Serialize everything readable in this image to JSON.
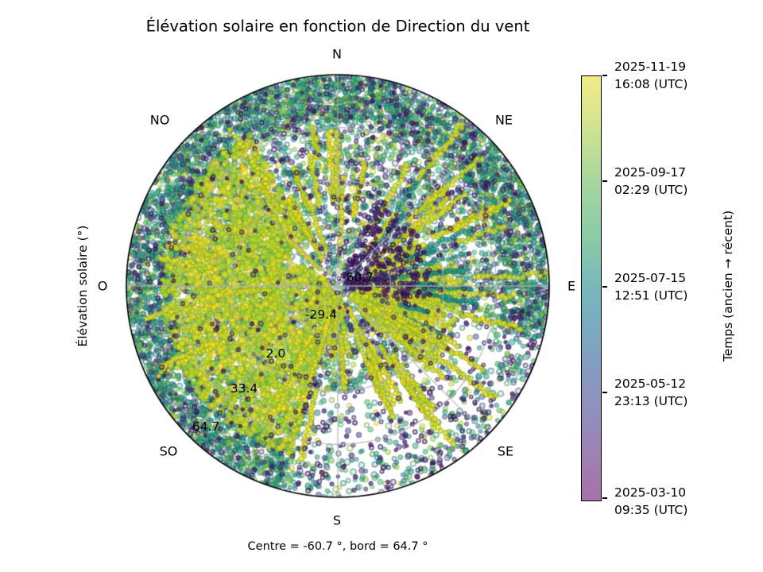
{
  "title": "Élévation solaire en fonction de Direction du vent",
  "ylabel": "Élévation solaire (°)",
  "caption": "Centre = -60.7 °, bord = 64.7 °",
  "compass": {
    "n": "N",
    "ne": "NE",
    "e": "E",
    "se": "SE",
    "s": "S",
    "so": "SO",
    "o": "O",
    "no": "NO"
  },
  "radial_ticks": [
    "-60.7",
    "-29.4",
    "2.0",
    "33.4",
    "64.7"
  ],
  "colorbar": {
    "label": "Temps (ancien → récent)",
    "gradient_stops": [
      "#f1ec85 0%",
      "#cfe492 12%",
      "#a5d69e 25%",
      "#8bcaa7 38%",
      "#79b7bb 50%",
      "#7da6c1 62%",
      "#8c94bf 75%",
      "#9c84b5 87%",
      "#a573a8 100%"
    ],
    "ticks": [
      {
        "line1": "2025-11-19",
        "line2": "16:08 (UTC)"
      },
      {
        "line1": "2025-09-17",
        "line2": "02:29 (UTC)"
      },
      {
        "line1": "2025-07-15",
        "line2": "12:51 (UTC)"
      },
      {
        "line1": "2025-05-12",
        "line2": "23:13 (UTC)"
      },
      {
        "line1": "2025-03-10",
        "line2": "09:35 (UTC)"
      }
    ]
  },
  "chart_data": {
    "type": "scatter",
    "subtype": "polar_scatter",
    "title": "Élévation solaire en fonction de Direction du vent",
    "angular_axis": {
      "variable": "Direction du vent",
      "labels": [
        "N",
        "NE",
        "E",
        "SE",
        "S",
        "SO",
        "O",
        "NO"
      ],
      "zero_location": "N",
      "clockwise": true
    },
    "radial_axis": {
      "variable": "Élévation solaire (°)",
      "center_value": -60.7,
      "edge_value": 64.7,
      "tick_values": [
        -60.7,
        -29.4,
        2.0,
        33.4,
        64.7
      ]
    },
    "color_axis": {
      "variable": "Temps (ancien → récent)",
      "colormap": "viridis",
      "alpha": 0.6,
      "oldest": "2025-03-10 09:35 (UTC)",
      "newest": "2025-11-19 16:08 (UTC)",
      "tick_labels": [
        "2025-11-19 16:08 (UTC)",
        "2025-09-17 02:29 (UTC)",
        "2025-07-15 12:51 (UTC)",
        "2025-05-12 23:13 (UTC)",
        "2025-03-10 09:35 (UTC)"
      ]
    },
    "caption": "Centre = -60.7 °, bord = 64.7 °",
    "grid": {
      "circle_values": [
        -29.4,
        2.0,
        33.4
      ],
      "spokes_deg": [
        0,
        45,
        90,
        135,
        180,
        225,
        270,
        315
      ],
      "color": "#b0b0b0"
    },
    "points": {
      "approx_count": 15000,
      "marker": "circle",
      "marker_diameter_px": 7,
      "density_notes": [
        "dense teal/green outer ring with purple specks at all bearings except a sparse S–SE outer sector",
        "large bright yellow (recent) cluster at mid radii on the W–SW–NW side",
        "yellow radial streak tracks toward N, NE, E and S",
        "sparse white region just NE of center and in the S/SE outer half",
        "purple (oldest) dots and hollow rings scattered throughout, clustered NE of center"
      ]
    },
    "render_seed": 42
  }
}
